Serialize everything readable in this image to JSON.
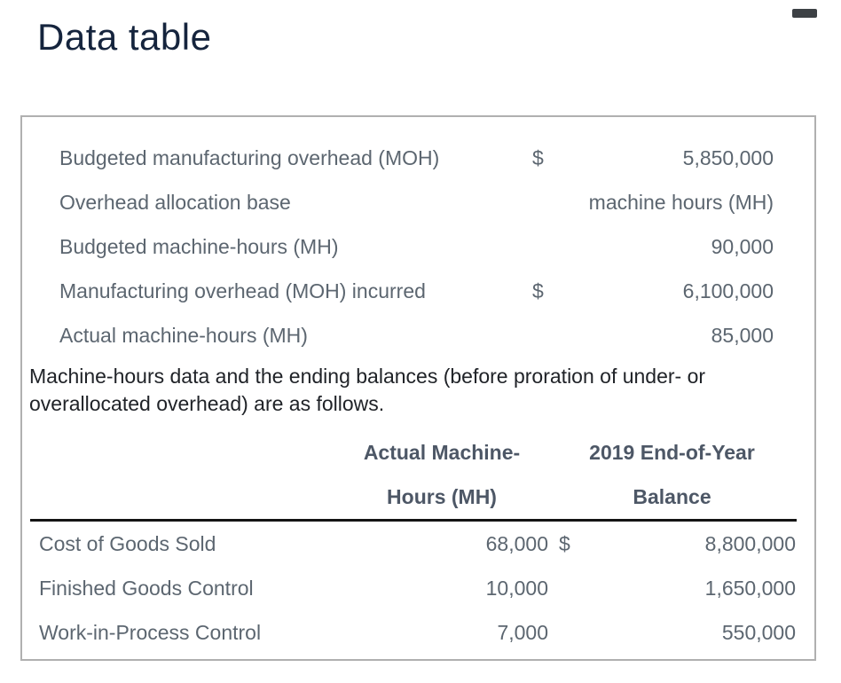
{
  "window": {
    "title": "Data table",
    "minimize_icon": "minimize-dash"
  },
  "colors": {
    "title_text": "#15243d",
    "body_text": "#5c6670",
    "note_text": "#202328",
    "header_text": "#4d5766",
    "panel_border": "#b0b0b0",
    "divider": "#141414",
    "minimize_icon": "#3d4145"
  },
  "facts": {
    "rows": [
      {
        "label": "Budgeted manufacturing overhead (MOH)",
        "currency": "$",
        "value": "5,850,000"
      },
      {
        "label": "Overhead allocation base",
        "currency": "",
        "value": "machine hours (MH)"
      },
      {
        "label": "Budgeted machine-hours (MH)",
        "currency": "",
        "value": "90,000"
      },
      {
        "label": "Manufacturing overhead (MOH) incurred",
        "currency": "$",
        "value": "6,100,000"
      },
      {
        "label": "Actual machine-hours (MH)",
        "currency": "",
        "value": "85,000"
      }
    ]
  },
  "note": "Machine-hours data and the ending balances (before proration of under- or overallocated overhead) are as follows.",
  "table": {
    "headers": {
      "mh_line1": "Actual Machine-",
      "mh_line2": "Hours (MH)",
      "balance_line1": "2019 End-of-Year",
      "balance_line2": "Balance"
    },
    "rows": [
      {
        "label": "Cost of Goods Sold",
        "mh": "68,000",
        "currency": "$",
        "balance": "8,800,000"
      },
      {
        "label": "Finished Goods Control",
        "mh": "10,000",
        "currency": "",
        "balance": "1,650,000"
      },
      {
        "label": "Work-in-Process Control",
        "mh": "7,000",
        "currency": "",
        "balance": "550,000"
      }
    ]
  }
}
